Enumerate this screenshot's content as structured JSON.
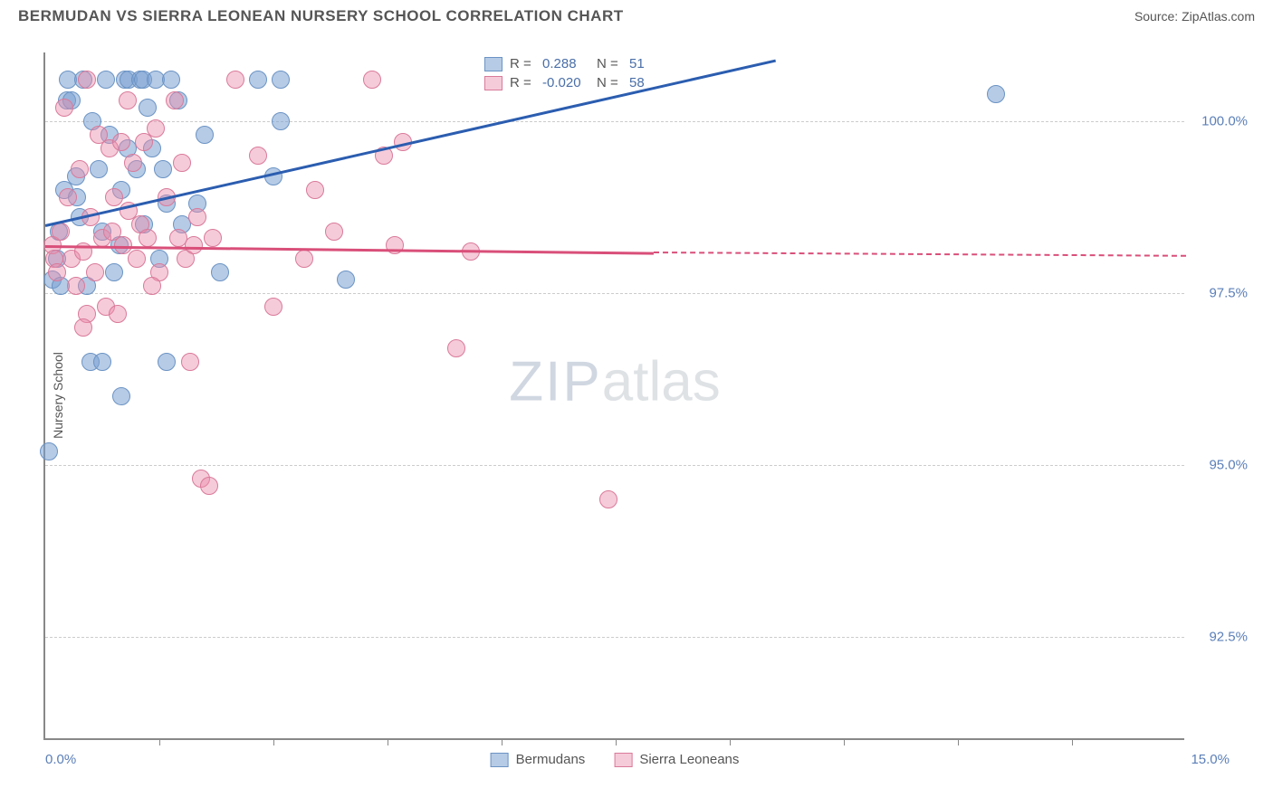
{
  "title": "BERMUDAN VS SIERRA LEONEAN NURSERY SCHOOL CORRELATION CHART",
  "source": "Source: ZipAtlas.com",
  "chart": {
    "type": "scatter",
    "ylabel": "Nursery School",
    "xlim": [
      0.0,
      15.0
    ],
    "ylim": [
      91.0,
      101.0
    ],
    "x_axis_label_min": "0.0%",
    "x_axis_label_max": "15.0%",
    "grid_color": "#cccccc",
    "yticks": [
      {
        "value": 100.0,
        "label": "100.0%"
      },
      {
        "value": 97.5,
        "label": "97.5%"
      },
      {
        "value": 95.0,
        "label": "95.0%"
      },
      {
        "value": 92.5,
        "label": "92.5%"
      }
    ],
    "xtick_positions": [
      1.5,
      3.0,
      4.5,
      6.0,
      7.5,
      9.0,
      10.5,
      12.0,
      13.5
    ],
    "watermark": {
      "a": "ZIP",
      "b": "atlas"
    },
    "series": [
      {
        "name": "Bermudans",
        "fill": "rgba(122,160,210,0.55)",
        "stroke": "#6b93c4",
        "marker_radius": 10,
        "trend": {
          "x0": 0.0,
          "y0": 98.5,
          "x1": 9.6,
          "y1": 100.9,
          "color": "#2b5db0",
          "dashed_extend": false
        },
        "stats": {
          "R": "0.288",
          "N": "51"
        },
        "points": [
          [
            0.1,
            97.7
          ],
          [
            0.15,
            98.0
          ],
          [
            0.18,
            98.4
          ],
          [
            0.25,
            99.0
          ],
          [
            0.3,
            100.6
          ],
          [
            0.28,
            100.3
          ],
          [
            0.4,
            99.2
          ],
          [
            0.45,
            98.6
          ],
          [
            0.5,
            100.6
          ],
          [
            0.55,
            97.6
          ],
          [
            0.6,
            96.5
          ],
          [
            0.62,
            100.0
          ],
          [
            0.7,
            99.3
          ],
          [
            0.75,
            98.4
          ],
          [
            0.8,
            100.6
          ],
          [
            0.85,
            99.8
          ],
          [
            0.9,
            97.8
          ],
          [
            0.05,
            95.2
          ],
          [
            0.2,
            97.6
          ],
          [
            0.35,
            100.3
          ],
          [
            1.0,
            99.0
          ],
          [
            1.05,
            100.6
          ],
          [
            1.08,
            99.6
          ],
          [
            1.1,
            100.6
          ],
          [
            1.2,
            99.3
          ],
          [
            1.25,
            100.6
          ],
          [
            1.28,
            100.6
          ],
          [
            1.3,
            98.5
          ],
          [
            1.35,
            100.2
          ],
          [
            1.4,
            99.6
          ],
          [
            1.45,
            100.6
          ],
          [
            1.5,
            98.0
          ],
          [
            1.0,
            96.0
          ],
          [
            1.55,
            99.3
          ],
          [
            1.6,
            98.8
          ],
          [
            1.6,
            96.5
          ],
          [
            1.65,
            100.6
          ],
          [
            1.75,
            100.3
          ],
          [
            1.8,
            98.5
          ],
          [
            2.0,
            98.8
          ],
          [
            2.1,
            99.8
          ],
          [
            2.3,
            97.8
          ],
          [
            2.8,
            100.6
          ],
          [
            3.0,
            99.2
          ],
          [
            3.1,
            100.0
          ],
          [
            3.1,
            100.6
          ],
          [
            3.95,
            97.7
          ],
          [
            0.75,
            96.5
          ],
          [
            12.5,
            100.4
          ],
          [
            0.42,
            98.9
          ],
          [
            0.98,
            98.2
          ]
        ]
      },
      {
        "name": "Sierra Leoneans",
        "fill": "rgba(235,140,170,0.45)",
        "stroke": "#d97a9a",
        "marker_radius": 10,
        "trend": {
          "x0": 0.0,
          "y0": 98.2,
          "x1": 8.0,
          "y1": 98.1,
          "x2": 15.0,
          "y2": 98.05,
          "color": "#d94f7a",
          "dashed_extend": true
        },
        "stats": {
          "R": "-0.020",
          "N": "58"
        },
        "points": [
          [
            0.1,
            98.2
          ],
          [
            0.12,
            98.0
          ],
          [
            0.15,
            97.8
          ],
          [
            0.2,
            98.4
          ],
          [
            0.25,
            100.2
          ],
          [
            0.3,
            98.9
          ],
          [
            0.35,
            98.0
          ],
          [
            0.4,
            97.6
          ],
          [
            0.45,
            99.3
          ],
          [
            0.5,
            98.1
          ],
          [
            0.55,
            100.6
          ],
          [
            0.55,
            97.2
          ],
          [
            0.6,
            98.6
          ],
          [
            0.65,
            97.8
          ],
          [
            0.7,
            99.8
          ],
          [
            0.75,
            98.3
          ],
          [
            0.8,
            97.3
          ],
          [
            0.85,
            99.6
          ],
          [
            0.88,
            98.4
          ],
          [
            0.9,
            98.9
          ],
          [
            0.95,
            97.2
          ],
          [
            1.0,
            99.7
          ],
          [
            1.02,
            98.2
          ],
          [
            1.08,
            100.3
          ],
          [
            1.1,
            98.7
          ],
          [
            1.15,
            99.4
          ],
          [
            1.2,
            98.0
          ],
          [
            1.25,
            98.5
          ],
          [
            1.3,
            99.7
          ],
          [
            1.35,
            98.3
          ],
          [
            1.45,
            99.9
          ],
          [
            1.5,
            97.8
          ],
          [
            1.6,
            98.9
          ],
          [
            1.7,
            100.3
          ],
          [
            1.75,
            98.3
          ],
          [
            1.8,
            99.4
          ],
          [
            1.85,
            98.0
          ],
          [
            1.9,
            96.5
          ],
          [
            2.0,
            98.6
          ],
          [
            2.05,
            94.8
          ],
          [
            2.15,
            94.7
          ],
          [
            2.2,
            98.3
          ],
          [
            2.5,
            100.6
          ],
          [
            2.8,
            99.5
          ],
          [
            3.0,
            97.3
          ],
          [
            3.4,
            98.0
          ],
          [
            3.55,
            99.0
          ],
          [
            3.8,
            98.4
          ],
          [
            4.3,
            100.6
          ],
          [
            4.45,
            99.5
          ],
          [
            4.6,
            98.2
          ],
          [
            4.7,
            99.7
          ],
          [
            5.4,
            96.7
          ],
          [
            5.6,
            98.1
          ],
          [
            7.4,
            94.5
          ],
          [
            1.95,
            98.2
          ],
          [
            0.5,
            97.0
          ],
          [
            1.4,
            97.6
          ]
        ]
      }
    ],
    "legend_series": [
      {
        "label": "Bermudans",
        "fill": "rgba(122,160,210,0.55)",
        "stroke": "#6b93c4"
      },
      {
        "label": "Sierra Leoneans",
        "fill": "rgba(235,140,170,0.45)",
        "stroke": "#d97a9a"
      }
    ]
  }
}
